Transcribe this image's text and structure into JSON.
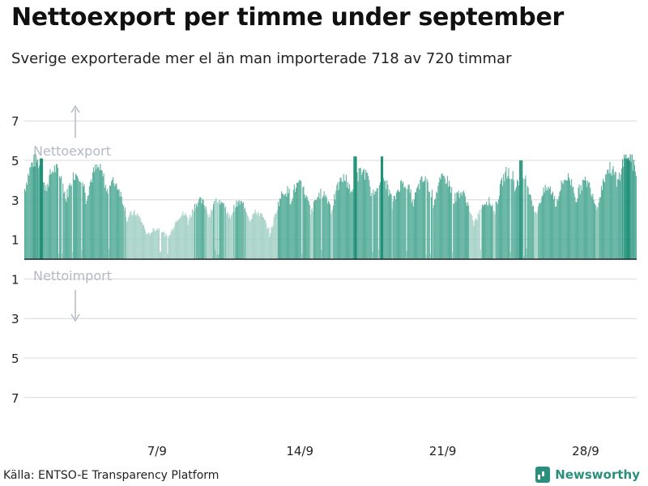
{
  "title": "Nettoexport per timme under september",
  "subtitle": "Sverige exporterade mer el än man importerade 718 av 720 timmar",
  "source": "Källa: ENTSO-E Transparency Platform",
  "brand": "Newsworthy",
  "colors": {
    "strong": "#5aaf9c",
    "light": "#a9d3c9",
    "highlight": "#1f8f77",
    "grid": "#d8d8d8",
    "zero": "#222222",
    "annotation": "#b5b8c6"
  },
  "chart_data": {
    "type": "bar",
    "x_unit": "hour",
    "ylim": [
      -8,
      8
    ],
    "y_ticks": [
      {
        "value": 7,
        "label": "7"
      },
      {
        "value": 5,
        "label": "5"
      },
      {
        "value": 3,
        "label": "3"
      },
      {
        "value": 1,
        "label": "1"
      },
      {
        "value": -1,
        "label": "1"
      },
      {
        "value": -3,
        "label": "3"
      },
      {
        "value": -5,
        "label": "5"
      },
      {
        "value": -7,
        "label": "7"
      }
    ],
    "x_ticks": [
      {
        "label": "7/9",
        "day": 7
      },
      {
        "label": "14/9",
        "day": 14
      },
      {
        "label": "21/9",
        "day": 21
      },
      {
        "label": "28/9",
        "day": 28
      }
    ],
    "annotations": {
      "export": "Nettoexport",
      "import": "Nettoimport"
    },
    "day_levels": [
      {
        "day": 1,
        "value": 4.3
      },
      {
        "day": 2,
        "value": 4.1
      },
      {
        "day": 3,
        "value": 3.6
      },
      {
        "day": 4,
        "value": 3.7
      },
      {
        "day": 5,
        "value": 4.0
      },
      {
        "day": 6,
        "value": 2.4
      },
      {
        "day": 7,
        "value": 1.4
      },
      {
        "day": 8,
        "value": 1.2
      },
      {
        "day": 9,
        "value": 2.3
      },
      {
        "day": 10,
        "value": 2.6
      },
      {
        "day": 11,
        "value": 2.4
      },
      {
        "day": 12,
        "value": 2.4
      },
      {
        "day": 13,
        "value": 1.5
      },
      {
        "day": 14,
        "value": 3.6
      },
      {
        "day": 15,
        "value": 2.7
      },
      {
        "day": 16,
        "value": 2.9
      },
      {
        "day": 17,
        "value": 3.8
      },
      {
        "day": 18,
        "value": 3.7
      },
      {
        "day": 19,
        "value": 3.2
      },
      {
        "day": 20,
        "value": 3.3
      },
      {
        "day": 21,
        "value": 3.4
      },
      {
        "day": 22,
        "value": 3.5
      },
      {
        "day": 23,
        "value": 2.0
      },
      {
        "day": 24,
        "value": 2.8
      },
      {
        "day": 25,
        "value": 4.3
      },
      {
        "day": 26,
        "value": 2.6
      },
      {
        "day": 27,
        "value": 3.3
      },
      {
        "day": 28,
        "value": 3.6
      },
      {
        "day": 29,
        "value": 3.0
      },
      {
        "day": 30,
        "value": 4.4
      }
    ],
    "peaks": [
      {
        "day": 1.8,
        "value": 5.1
      },
      {
        "day": 17.2,
        "value": 5.2
      },
      {
        "day": 18.5,
        "value": 5.2
      },
      {
        "day": 25.3,
        "value": 5.0
      }
    ],
    "net_import_hours": 2,
    "total_hours": 720
  }
}
